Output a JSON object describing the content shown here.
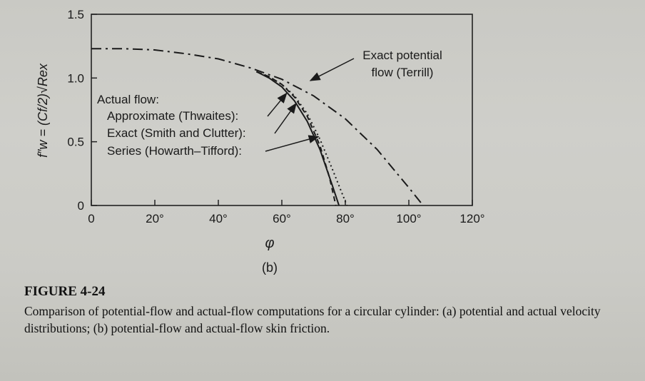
{
  "chart_data": {
    "type": "line",
    "ylabel": "f″w = (Cf/2)√Rex",
    "xlabel": "φ",
    "panel_label": "(b)",
    "xlim": [
      0,
      120
    ],
    "ylim": [
      0,
      1.5
    ],
    "xticks": [
      0,
      20,
      40,
      60,
      80,
      100,
      120
    ],
    "xtick_labels": [
      "0",
      "20°",
      "40°",
      "60°",
      "80°",
      "100°",
      "120°"
    ],
    "yticks": [
      0,
      0.5,
      1.0,
      1.5
    ],
    "ytick_labels": [
      "0",
      "0.5",
      "1.0",
      "1.5"
    ],
    "legend_heading": "Actual flow:",
    "series": [
      {
        "name": "Exact potential flow (Terrill)",
        "name_lines": [
          "Exact potential",
          "flow (Terrill)"
        ],
        "style": "dash-dot",
        "x": [
          0,
          10,
          20,
          30,
          40,
          50,
          60,
          70,
          80,
          90,
          100,
          104.5
        ],
        "y": [
          1.23,
          1.23,
          1.22,
          1.19,
          1.15,
          1.08,
          0.99,
          0.86,
          0.68,
          0.44,
          0.14,
          0.0
        ]
      },
      {
        "name": "Approximate (Thwaites):",
        "style": "solid",
        "x": [
          52,
          56,
          60,
          64,
          68,
          72,
          76,
          78
        ],
        "y": [
          1.05,
          1.0,
          0.93,
          0.82,
          0.66,
          0.44,
          0.15,
          0.0
        ]
      },
      {
        "name": "Exact (Smith and Clutter):",
        "style": "dashed",
        "x": [
          52,
          56,
          60,
          64,
          68,
          72,
          75,
          77
        ],
        "y": [
          1.05,
          1.01,
          0.95,
          0.85,
          0.7,
          0.47,
          0.22,
          0.0
        ]
      },
      {
        "name": "Series (Howarth–Tifford):",
        "style": "dotted",
        "x": [
          52,
          56,
          60,
          64,
          68,
          72,
          76,
          80.5
        ],
        "y": [
          1.05,
          1.01,
          0.95,
          0.86,
          0.72,
          0.52,
          0.28,
          0.0
        ]
      }
    ]
  },
  "caption": {
    "figure_label": "FIGURE 4-24",
    "text": "Comparison of potential-flow and actual-flow computations for a circular cylinder: (a) potential and actual velocity distributions; (b) potential-flow and actual-flow skin friction."
  }
}
